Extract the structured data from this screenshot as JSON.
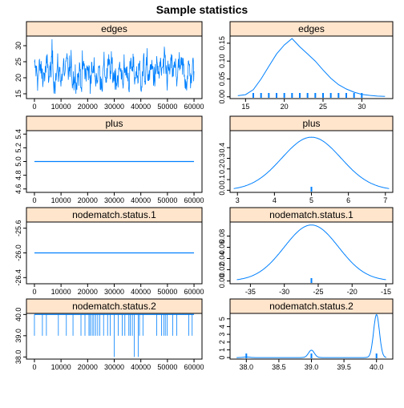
{
  "title": "Sample statistics",
  "colors": {
    "line": "#0080ff",
    "strip": "#ffe5cc",
    "frame": "#000000"
  },
  "chart_data": [
    {
      "statistic": "edges",
      "type": "line",
      "xlim": [
        -3000,
        63000
      ],
      "ylim": [
        13.5,
        33
      ],
      "x_ticks": [
        0,
        10000,
        20000,
        30000,
        40000,
        50000,
        60000
      ],
      "x_tick_labels": [
        "0",
        "10000",
        "20000",
        "30000",
        "40000",
        "50000",
        "60000"
      ],
      "y_ticks": [
        15,
        20,
        25,
        30
      ],
      "y_tick_labels": [
        "15",
        "20",
        "25",
        "30"
      ],
      "trace": {
        "n": 60000,
        "mean": 21.5,
        "sd": 2.8,
        "min": 15,
        "max": 32
      }
    },
    {
      "statistic": "edges",
      "type": "area",
      "xlim": [
        13,
        34
      ],
      "ylim": [
        -0.005,
        0.17
      ],
      "x_ticks": [
        15,
        20,
        25,
        30
      ],
      "x_tick_labels": [
        "15",
        "20",
        "25",
        "30"
      ],
      "y_ticks": [
        0.0,
        0.05,
        0.1,
        0.15
      ],
      "y_tick_labels": [
        "0.00",
        "0.05",
        "0.10",
        "0.15"
      ],
      "density": {
        "x": [
          14,
          15,
          16,
          17,
          18,
          19,
          20,
          21,
          22,
          23,
          24,
          25,
          26,
          27,
          28,
          29,
          30,
          31,
          32,
          33
        ],
        "y": [
          0.003,
          0.006,
          0.02,
          0.05,
          0.085,
          0.12,
          0.145,
          0.163,
          0.14,
          0.12,
          0.1,
          0.075,
          0.052,
          0.034,
          0.022,
          0.013,
          0.007,
          0.004,
          0.002,
          0.001
        ]
      },
      "rug": [
        16,
        17,
        18,
        19,
        20,
        21,
        22,
        23,
        24,
        25,
        26,
        27,
        28,
        29,
        30
      ]
    },
    {
      "statistic": "plus",
      "type": "line",
      "xlim": [
        -3000,
        63000
      ],
      "ylim": [
        4.55,
        5.45
      ],
      "x_ticks": [
        0,
        10000,
        20000,
        30000,
        40000,
        50000,
        60000
      ],
      "x_tick_labels": [
        "0",
        "10000",
        "20000",
        "30000",
        "40000",
        "50000",
        "60000"
      ],
      "y_ticks": [
        4.6,
        4.8,
        5.0,
        5.2,
        5.4
      ],
      "y_tick_labels": [
        "4.6",
        "4.8",
        "5.0",
        "5.2",
        "5.4"
      ],
      "trace": {
        "constant": 5
      }
    },
    {
      "statistic": "plus",
      "type": "area",
      "xlim": [
        2.8,
        7.2
      ],
      "ylim": [
        -0.02,
        0.56
      ],
      "x_ticks": [
        3,
        4,
        5,
        6,
        7
      ],
      "x_tick_labels": [
        "3",
        "4",
        "5",
        "6",
        "7"
      ],
      "y_ticks": [
        0.0,
        0.1,
        0.2,
        0.3,
        0.4
      ],
      "y_tick_labels": [
        "0.0",
        "0.1",
        "0.2",
        "0.3",
        "0.4"
      ],
      "density": {
        "mean": 5,
        "sd": 0.8,
        "from": 2.9,
        "to": 7.1
      },
      "rug": [
        5
      ]
    },
    {
      "statistic": "nodematch.status.1",
      "type": "line",
      "xlim": [
        -3000,
        63000
      ],
      "ylim": [
        -26.5,
        -25.5
      ],
      "x_ticks": [
        0,
        10000,
        20000,
        30000,
        40000,
        50000,
        60000
      ],
      "x_tick_labels": [
        "0",
        "10000",
        "20000",
        "30000",
        "40000",
        "50000",
        "60000"
      ],
      "y_ticks": [
        -26.4,
        -26.0,
        -25.6
      ],
      "y_tick_labels": [
        "-26.4",
        "-26.0",
        "-25.6"
      ],
      "trace": {
        "constant": -26
      }
    },
    {
      "statistic": "nodematch.status.1",
      "type": "area",
      "xlim": [
        -38,
        -14
      ],
      "ylim": [
        -0.005,
        0.105
      ],
      "x_ticks": [
        -35,
        -30,
        -25,
        -20,
        -15
      ],
      "x_tick_labels": [
        "-35",
        "-30",
        "-25",
        "-20",
        "-15"
      ],
      "y_ticks": [
        0.0,
        0.02,
        0.04,
        0.06,
        0.08
      ],
      "y_tick_labels": [
        "0.00",
        "0.02",
        "0.04",
        "0.06",
        "0.08"
      ],
      "density": {
        "mean": -26,
        "sd": 4,
        "from": -37,
        "to": -15
      },
      "rug": [
        -26
      ]
    },
    {
      "statistic": "nodematch.status.2",
      "type": "line",
      "xlim": [
        -3000,
        63000
      ],
      "ylim": [
        37.9,
        40.05
      ],
      "x_ticks": [
        0,
        10000,
        20000,
        30000,
        40000,
        50000,
        60000
      ],
      "x_tick_labels": [
        "0",
        "10000",
        "20000",
        "30000",
        "40000",
        "50000",
        "60000"
      ],
      "y_ticks": [
        38.0,
        39.0,
        40.0
      ],
      "y_tick_labels": [
        "38.0",
        "39.0",
        "40.0"
      ],
      "trace": {
        "baseline": 40,
        "drops_to_39": [
          0,
          3000,
          4500,
          9000,
          12000,
          14500,
          17500,
          19000,
          20500,
          21000,
          21700,
          22300,
          23000,
          23800,
          24600,
          26000,
          27500,
          28500,
          31500,
          33000,
          34000,
          35500,
          36000,
          36800,
          39500,
          40800,
          46000,
          47800,
          48600,
          49200,
          49900,
          52000,
          53500,
          58000,
          59300
        ],
        "drops_to_38": [
          30000,
          37500,
          39000
        ]
      }
    },
    {
      "statistic": "nodematch.status.2",
      "type": "area",
      "xlim": [
        37.75,
        40.25
      ],
      "ylim": [
        -0.2,
        5.7
      ],
      "x_ticks": [
        38.0,
        38.5,
        39.0,
        39.5,
        40.0
      ],
      "x_tick_labels": [
        "38.0",
        "38.5",
        "39.0",
        "39.5",
        "40.0"
      ],
      "y_ticks": [
        0,
        1,
        2,
        3,
        4,
        5
      ],
      "y_tick_labels": [
        "0",
        "1",
        "2",
        "3",
        "4",
        "5"
      ],
      "density": {
        "from": 37.85,
        "to": 40.15,
        "components": [
          {
            "mean": 38.0,
            "sd": 0.045,
            "peak": 0.08
          },
          {
            "mean": 39.0,
            "sd": 0.045,
            "peak": 0.95
          },
          {
            "mean": 40.0,
            "sd": 0.045,
            "peak": 5.55
          }
        ]
      },
      "rug": [
        38,
        39,
        40
      ]
    }
  ]
}
